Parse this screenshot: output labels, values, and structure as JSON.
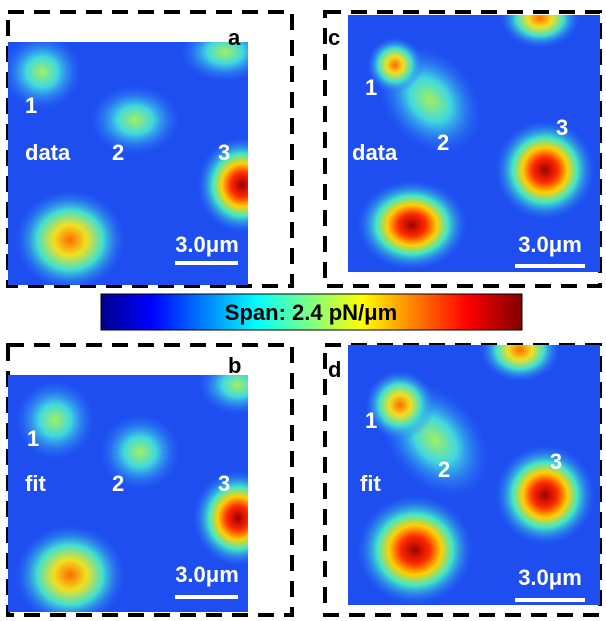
{
  "panels": [
    {
      "letter": "a",
      "mode": "data",
      "peaks": [
        "1",
        "2",
        "3"
      ],
      "scale": "3.0μm"
    },
    {
      "letter": "b",
      "mode": "fit",
      "peaks": [
        "1",
        "2",
        "3"
      ],
      "scale": "3.0μm"
    },
    {
      "letter": "c",
      "mode": "data",
      "peaks": [
        "1",
        "2",
        "3"
      ],
      "scale": "3.0μm"
    },
    {
      "letter": "d",
      "mode": "fit",
      "peaks": [
        "1",
        "2",
        "3"
      ],
      "scale": "3.0μm"
    }
  ],
  "colorbar": {
    "label": "Span: 2.4 pN/μm"
  }
}
